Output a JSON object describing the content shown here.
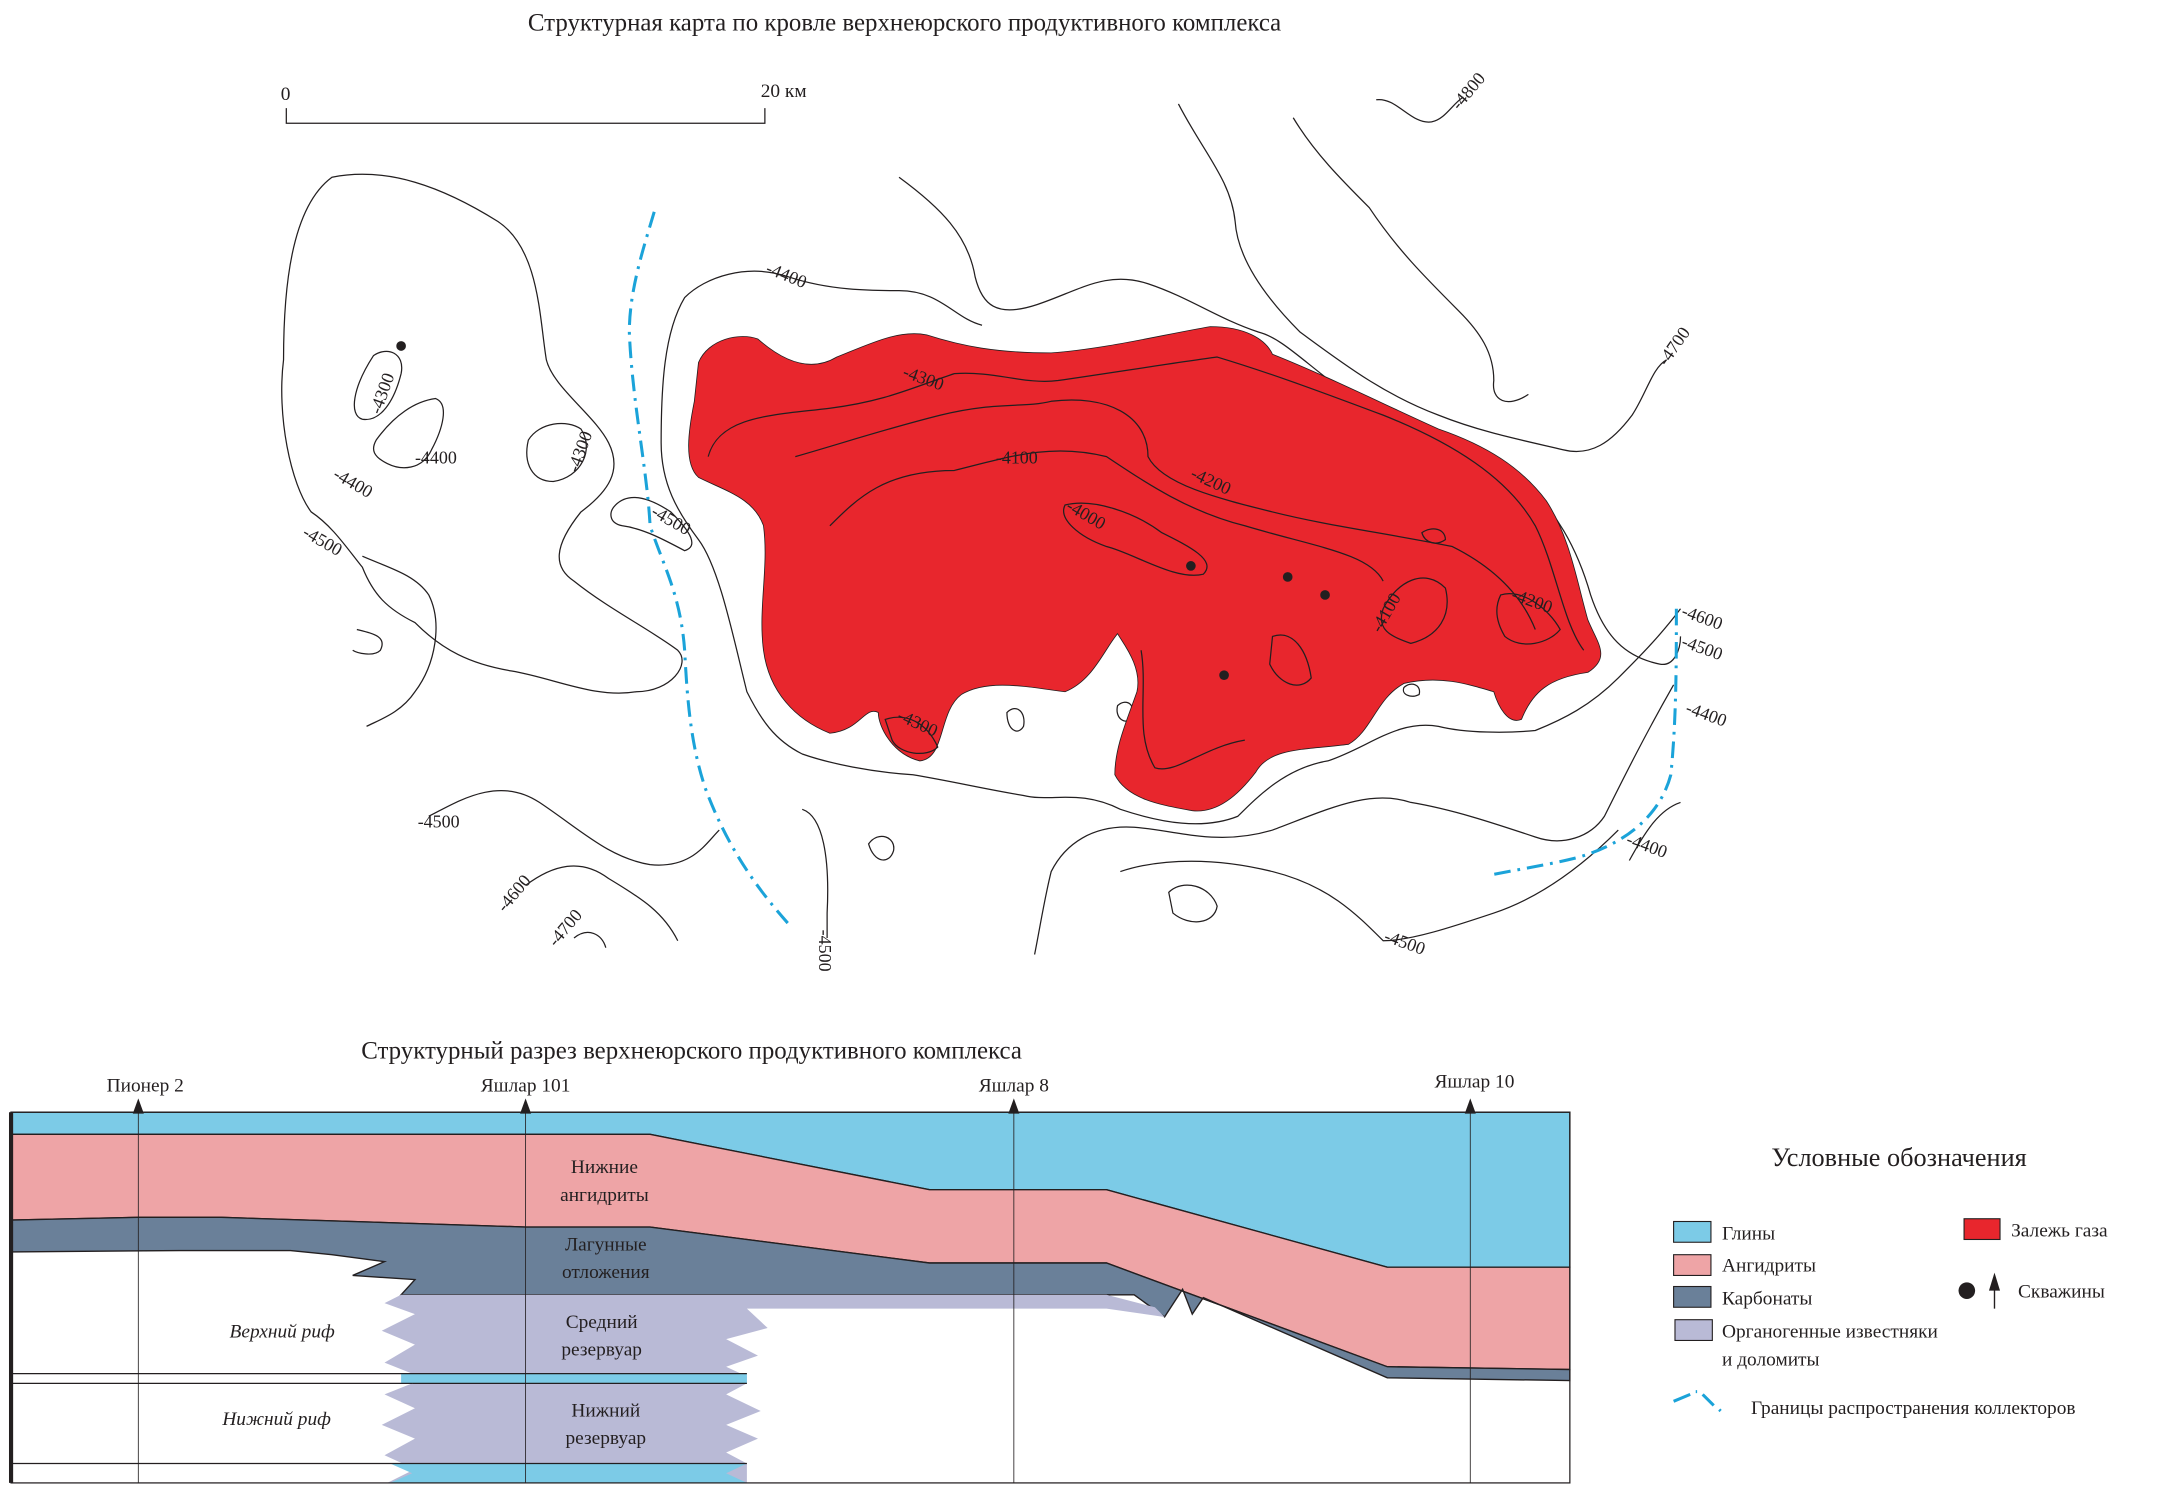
{
  "map": {
    "title": "Структурная карта по кровле верхнеюрского продуктивного комплекса",
    "scale": {
      "start": "0",
      "end": "20 км"
    },
    "contour_labels": [
      "-4800",
      "-4400",
      "-4300",
      "-4700",
      "-4300",
      "-4400",
      "-4300",
      "-4400",
      "-4500",
      "-4500",
      "-4100",
      "-4200",
      "-4000",
      "-4100",
      "-4200",
      "-4600",
      "-4500",
      "-4400",
      "-4300",
      "-4500",
      "-4600",
      "-4700",
      "-4500",
      "-4400",
      "-4500"
    ],
    "colors": {
      "gas": "#e8262d",
      "boundary": "#1ba3d9"
    }
  },
  "section": {
    "title": "Структурный разрез верхнеюрского продуктивного комплекса",
    "wells": [
      "Пионер 2",
      "Яшлар 101",
      "Яшлар 8",
      "Яшлар 10"
    ],
    "layer_labels": {
      "lower_anhydrites": [
        "Нижние",
        "ангидриты"
      ],
      "lagoon": [
        "Лагунные",
        "отложения"
      ],
      "middle_reservoir": [
        "Средний",
        "резервуар"
      ],
      "lower_reservoir": [
        "Нижний",
        "резервуар"
      ],
      "upper_reef": "Верхний риф",
      "lower_reef": "Нижний риф"
    },
    "colors": {
      "clay": "#7ccbe7",
      "anhydrite": "#eea4a6",
      "carbonate": "#6a8099",
      "limestone": "#b9bad6"
    }
  },
  "legend": {
    "title": "Условные обозначения",
    "items": [
      {
        "label": "Глины",
        "color": "#7ccbe7"
      },
      {
        "label": "Ангидриты",
        "color": "#eea4a6"
      },
      {
        "label": "Карбонаты",
        "color": "#6a8099"
      },
      {
        "label": "Органогенные известняки",
        "label2": "и доломиты",
        "color": "#b9bad6"
      }
    ],
    "gas": {
      "label": "Залежь газа",
      "color": "#e8262d"
    },
    "wells": {
      "label": "Скважины"
    },
    "boundary": {
      "label": "Границы распространения коллекторов"
    }
  }
}
